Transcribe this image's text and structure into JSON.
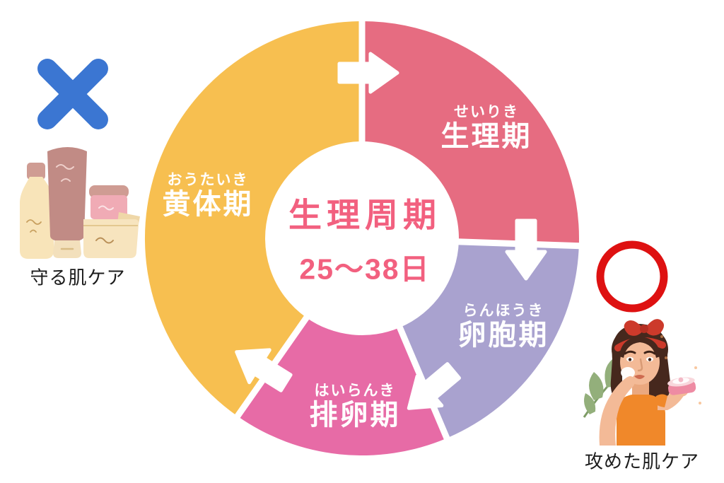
{
  "diagram": {
    "title_note": "menstrual-cycle donut diagram",
    "center": {
      "title": "生理周期",
      "subtitle": "25〜38日",
      "text_color": "#f2607f"
    },
    "phases": [
      {
        "name": "生理期",
        "reading": "せいりき",
        "color": "#e66c81",
        "start_angle": 0,
        "end_angle": 92
      },
      {
        "name": "卵胞期",
        "reading": "らんほうき",
        "color": "#a9a2cf",
        "start_angle": 92,
        "end_angle": 157
      },
      {
        "name": "排卵期",
        "reading": "はいらんき",
        "color": "#e76ba6",
        "start_angle": 157,
        "end_angle": 215
      },
      {
        "name": "黄体期",
        "reading": "おうたいき",
        "color": "#f7bf50",
        "start_angle": 215,
        "end_angle": 360
      }
    ],
    "arrow_color": "#ffffff",
    "flow_direction": "clockwise"
  },
  "left_callout": {
    "mark": "cross",
    "mark_color": "#3b76d2",
    "illustration": "skincare-products",
    "label": "守る肌ケア"
  },
  "right_callout": {
    "mark": "circle",
    "mark_color": "#de1111",
    "illustration": "woman-applying-cream",
    "label": "攻めた肌ケア"
  }
}
